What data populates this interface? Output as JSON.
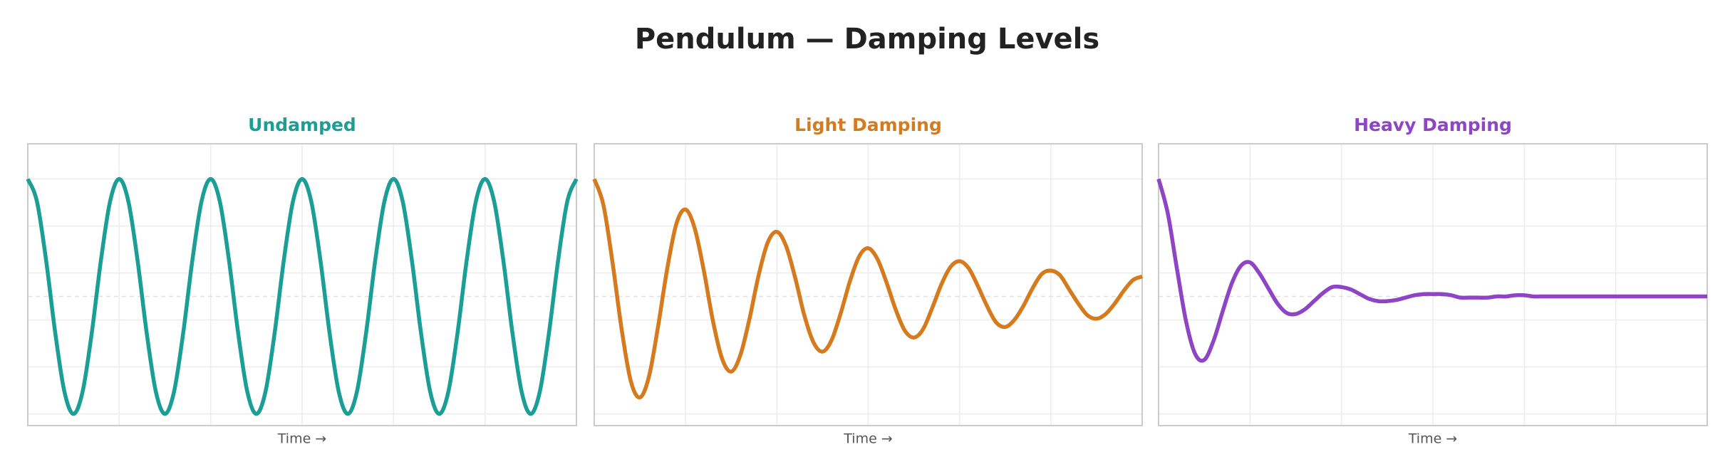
{
  "title": "Pendulum — Damping Levels",
  "chart_data": [
    {
      "type": "line",
      "title": "Undamped",
      "xlabel": "Time →",
      "color": "#1a9e96",
      "xlim": [
        0,
        6
      ],
      "ylim": [
        -1.1,
        1.3
      ],
      "xticks": [
        0,
        1,
        2,
        3,
        4,
        5,
        6
      ],
      "yticks": [
        -1,
        -0.6,
        -0.2,
        0.2,
        0.6,
        1
      ],
      "grid": true,
      "zero_line": true,
      "tick_labels": false,
      "x": [
        0,
        0.1,
        0.2,
        0.3,
        0.4,
        0.5,
        0.6,
        0.7,
        0.8,
        0.9,
        1,
        1.1,
        1.2,
        1.3,
        1.4,
        1.5,
        1.6,
        1.7,
        1.8,
        1.9,
        2,
        2.1,
        2.2,
        2.3,
        2.4,
        2.5,
        2.6,
        2.7,
        2.8,
        2.9,
        3,
        3.1,
        3.2,
        3.3,
        3.4,
        3.5,
        3.6,
        3.7,
        3.8,
        3.9,
        4,
        4.1,
        4.2,
        4.3,
        4.4,
        4.5,
        4.6,
        4.7,
        4.8,
        4.9,
        5,
        5.1,
        5.2,
        5.3,
        5.4,
        5.5,
        5.6,
        5.7,
        5.8,
        5.9,
        6
      ],
      "values": [
        1,
        0.809,
        0.309,
        -0.309,
        -0.809,
        -1,
        -0.809,
        -0.309,
        0.309,
        0.809,
        1,
        0.809,
        0.309,
        -0.309,
        -0.809,
        -1,
        -0.809,
        -0.309,
        0.309,
        0.809,
        1,
        0.809,
        0.309,
        -0.309,
        -0.809,
        -1,
        -0.809,
        -0.309,
        0.309,
        0.809,
        1,
        0.809,
        0.309,
        -0.309,
        -0.809,
        -1,
        -0.809,
        -0.309,
        0.309,
        0.809,
        1,
        0.809,
        0.309,
        -0.309,
        -0.809,
        -1,
        -0.809,
        -0.309,
        0.309,
        0.809,
        1,
        0.809,
        0.309,
        -0.309,
        -0.809,
        -1,
        -0.809,
        -0.309,
        0.309,
        0.809,
        1
      ]
    },
    {
      "type": "line",
      "title": "Light Damping",
      "xlabel": "Time →",
      "color": "#d57b1e",
      "xlim": [
        0,
        6
      ],
      "ylim": [
        -1.1,
        1.3
      ],
      "xticks": [
        0,
        1,
        2,
        3,
        4,
        5,
        6
      ],
      "yticks": [
        -1,
        -0.6,
        -0.2,
        0.2,
        0.6,
        1
      ],
      "grid": true,
      "zero_line": true,
      "tick_labels": false,
      "x": [
        0,
        0.1,
        0.2,
        0.3,
        0.4,
        0.5,
        0.6,
        0.7,
        0.8,
        0.9,
        1,
        1.1,
        1.2,
        1.3,
        1.4,
        1.5,
        1.6,
        1.7,
        1.8,
        1.9,
        2,
        2.1,
        2.2,
        2.3,
        2.4,
        2.5,
        2.6,
        2.7,
        2.8,
        2.9,
        3,
        3.1,
        3.2,
        3.3,
        3.4,
        3.5,
        3.6,
        3.7,
        3.8,
        3.9,
        4,
        4.1,
        4.2,
        4.3,
        4.4,
        4.5,
        4.6,
        4.7,
        4.8,
        4.9,
        5,
        5.1,
        5.2,
        5.3,
        5.4,
        5.5,
        5.6,
        5.7,
        5.8,
        5.9,
        6
      ],
      "values": [
        1,
        0.78,
        0.29,
        -0.28,
        -0.72,
        -0.86,
        -0.68,
        -0.25,
        0.24,
        0.62,
        0.74,
        0.58,
        0.22,
        -0.21,
        -0.53,
        -0.64,
        -0.5,
        -0.19,
        0.18,
        0.46,
        0.55,
        0.43,
        0.16,
        -0.16,
        -0.39,
        -0.47,
        -0.37,
        -0.14,
        0.13,
        0.34,
        0.41,
        0.32,
        0.12,
        -0.11,
        -0.29,
        -0.35,
        -0.28,
        -0.1,
        0.1,
        0.25,
        0.3,
        0.24,
        0.09,
        -0.08,
        -0.22,
        -0.26,
        -0.2,
        -0.08,
        0.07,
        0.19,
        0.22,
        0.18,
        0.06,
        -0.06,
        -0.16,
        -0.19,
        -0.15,
        -0.06,
        0.05,
        0.14,
        0.17
      ]
    },
    {
      "type": "line",
      "title": "Heavy Damping",
      "xlabel": "Time →",
      "color": "#8e44c4",
      "xlim": [
        0,
        6
      ],
      "ylim": [
        -1.1,
        1.3
      ],
      "xticks": [
        0,
        1,
        2,
        3,
        4,
        5,
        6
      ],
      "yticks": [
        -1,
        -0.6,
        -0.2,
        0.2,
        0.6,
        1
      ],
      "grid": true,
      "zero_line": true,
      "tick_labels": false,
      "x": [
        0,
        0.1,
        0.2,
        0.3,
        0.4,
        0.5,
        0.6,
        0.7,
        0.8,
        0.9,
        1,
        1.1,
        1.2,
        1.3,
        1.4,
        1.5,
        1.6,
        1.7,
        1.8,
        1.9,
        2,
        2.1,
        2.2,
        2.3,
        2.4,
        2.5,
        2.6,
        2.7,
        2.8,
        2.9,
        3,
        3.1,
        3.2,
        3.3,
        3.4,
        3.5,
        3.6,
        3.7,
        3.8,
        3.9,
        4,
        4.1,
        4.2,
        4.3,
        4.4,
        4.5,
        4.6,
        4.7,
        4.8,
        4.9,
        5,
        5.1,
        5.2,
        5.3,
        5.4,
        5.5,
        5.6,
        5.7,
        5.8,
        5.9,
        6
      ],
      "values": [
        1,
        0.71,
        0.24,
        -0.21,
        -0.49,
        -0.54,
        -0.38,
        -0.13,
        0.11,
        0.26,
        0.29,
        0.2,
        0.07,
        -0.06,
        -0.14,
        -0.15,
        -0.11,
        -0.04,
        0.03,
        0.08,
        0.08,
        0.06,
        0.02,
        -0.02,
        -0.04,
        -0.04,
        -0.03,
        -0.01,
        0.01,
        0.02,
        0.02,
        0.02,
        0.01,
        -0.01,
        -0.01,
        -0.01,
        -0.01,
        0,
        0,
        0.01,
        0.01,
        0,
        0,
        0,
        0,
        0,
        0,
        0,
        0,
        0,
        0,
        0,
        0,
        0,
        0,
        0,
        0,
        0,
        0,
        0,
        0
      ]
    }
  ]
}
